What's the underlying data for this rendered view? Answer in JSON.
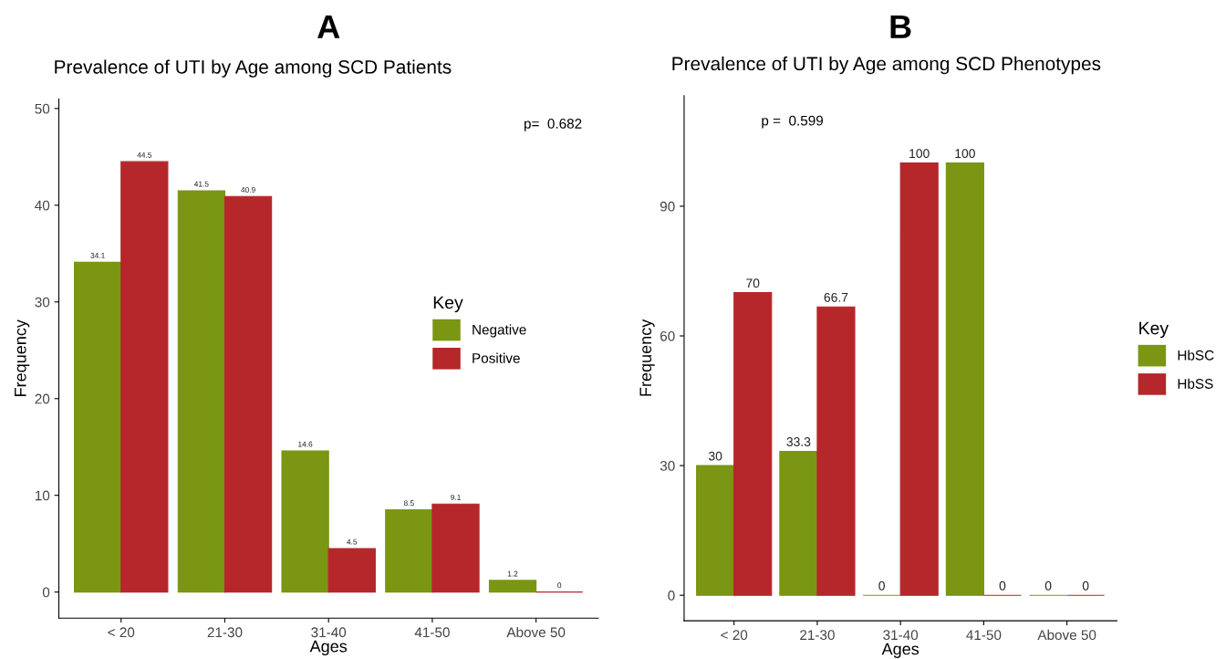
{
  "chart_data": [
    {
      "type": "bar",
      "title": "A",
      "subtitle": "Prevalence of UTI by Age among SCD Patients",
      "xlabel": "Ages",
      "ylabel": "Frequency",
      "legend_title": "Key",
      "legend": "right",
      "grid": false,
      "data_labels": true,
      "categories": [
        "< 20",
        "21-30",
        "31-40",
        "41-50",
        "Above 50"
      ],
      "series": [
        {
          "name": "Negative",
          "color": "#7a9612",
          "values": [
            34.1,
            41.5,
            14.6,
            8.5,
            1.2
          ]
        },
        {
          "name": "Positive",
          "color": "#b5272a",
          "values": [
            44.5,
            40.9,
            4.5,
            9.1,
            0
          ]
        }
      ],
      "ylim": [
        -2.7,
        51
      ],
      "yticks": [
        0,
        10,
        20,
        30,
        40,
        50
      ],
      "annotations": [
        "p=  0.682"
      ]
    },
    {
      "type": "bar",
      "title": "B",
      "subtitle": "Prevalence of UTI by Age among SCD Phenotypes",
      "xlabel": "Ages",
      "ylabel": "Frequency",
      "legend_title": "Key",
      "legend": "right",
      "grid": false,
      "data_labels": true,
      "categories": [
        "< 20",
        "21-30",
        "31-40",
        "41-50",
        "Above 50"
      ],
      "series": [
        {
          "name": "HbSC",
          "color": "#7a9612",
          "values": [
            30,
            33.3,
            0,
            100,
            0
          ]
        },
        {
          "name": "HbSS",
          "color": "#b5272a",
          "values": [
            70,
            66.7,
            100,
            0,
            0
          ]
        }
      ],
      "ylim": [
        -5.9,
        115.6
      ],
      "yticks": [
        0,
        30,
        60,
        90
      ],
      "annotations": [
        "p =  0.599"
      ]
    }
  ]
}
